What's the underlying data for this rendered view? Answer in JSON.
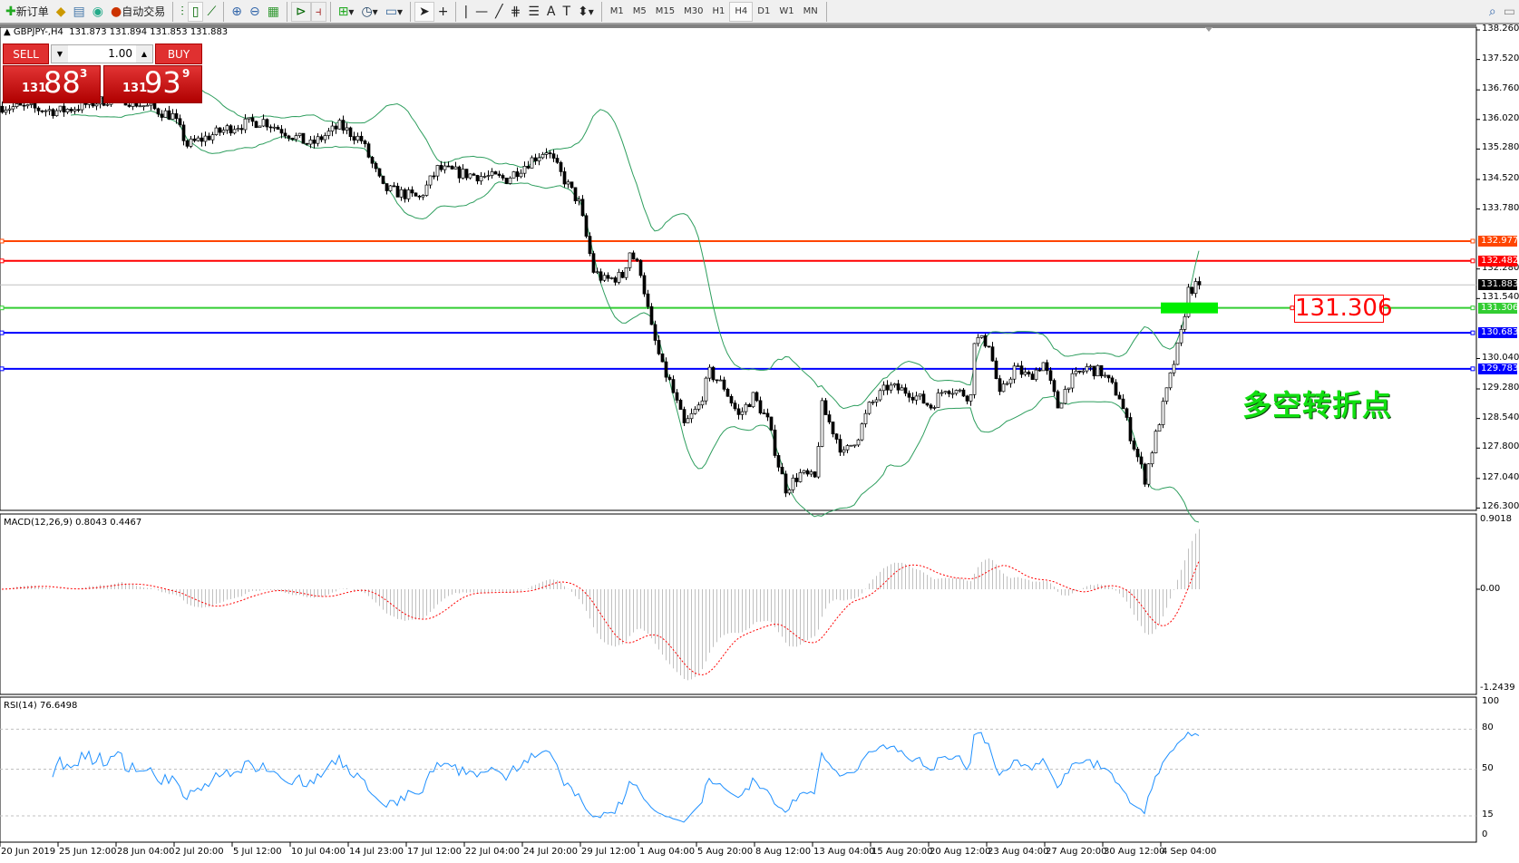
{
  "toolbar": {
    "new_order": "新订单",
    "auto_trading": "自动交易",
    "timeframes": [
      "M1",
      "M5",
      "M15",
      "M30",
      "H1",
      "H4",
      "D1",
      "W1",
      "MN"
    ],
    "active_timeframe": "H4"
  },
  "chart": {
    "symbol_info": "GBPJPY-,H4  131.873 131.894 131.853 131.883",
    "trade": {
      "sell": "SELL",
      "buy": "BUY",
      "lot": "1.00",
      "bid": {
        "prefix": "131",
        "main": "88",
        "sup": "3"
      },
      "ask": {
        "prefix": "131",
        "main": "93",
        "sup": "9"
      }
    },
    "price_ticks": [
      "138.260",
      "137.520",
      "136.760",
      "136.020",
      "135.280",
      "134.520",
      "133.780",
      "132.280",
      "131.540",
      "130.040",
      "129.280",
      "128.540",
      "127.800",
      "127.040",
      "126.300"
    ],
    "levels": [
      {
        "price": "132.977",
        "color": "#ff4500"
      },
      {
        "price": "132.482",
        "color": "#ff0000"
      },
      {
        "price": "131.306",
        "color": "#32cd32"
      },
      {
        "price": "130.683",
        "color": "#0000ff"
      },
      {
        "price": "129.783",
        "color": "#0000ff"
      }
    ],
    "current_price": "131.883",
    "annotation": {
      "price": "131.306",
      "text": "多空转折点",
      "text_color": "#11e011"
    },
    "macd": {
      "label": "MACD(12,26,9) 0.8043 0.4467",
      "ticks": [
        "0.9018",
        "0.00",
        "-1.2439"
      ]
    },
    "rsi": {
      "label": "RSI(14) 76.6498",
      "ticks": [
        "100",
        "80",
        "50",
        "15",
        "0"
      ]
    },
    "time_labels": [
      "20 Jun 2019",
      "25 Jun 12:00",
      "28 Jun 04:00",
      "2 Jul 20:00",
      "5 Jul 12:00",
      "10 Jul 04:00",
      "14 Jul 23:00",
      "17 Jul 12:00",
      "22 Jul 04:00",
      "24 Jul 20:00",
      "29 Jul 12:00",
      "1 Aug 04:00",
      "5 Aug 20:00",
      "8 Aug 12:00",
      "13 Aug 04:00",
      "15 Aug 20:00",
      "20 Aug 12:00",
      "23 Aug 04:00",
      "27 Aug 20:00",
      "30 Aug 12:00",
      "4 Sep 04:00"
    ]
  },
  "chart_data": {
    "type": "candlestick",
    "symbol": "GBPJPY",
    "timeframe": "H4",
    "ylim": [
      126.3,
      138.26
    ],
    "indicators": [
      "Bollinger Bands",
      "MACD(12,26,9)",
      "RSI(14)"
    ],
    "approx_close_path": [
      [
        0,
        136.35
      ],
      [
        16,
        136.23
      ],
      [
        32,
        136.59
      ],
      [
        47,
        136.11
      ],
      [
        51,
        135.38
      ],
      [
        64,
        135.86
      ],
      [
        72,
        135.99
      ],
      [
        80,
        135.62
      ],
      [
        85,
        135.38
      ],
      [
        93,
        135.86
      ],
      [
        99,
        135.5
      ],
      [
        105,
        134.29
      ],
      [
        115,
        134.05
      ],
      [
        120,
        134.78
      ],
      [
        128,
        134.65
      ],
      [
        139,
        134.53
      ],
      [
        146,
        135.02
      ],
      [
        150,
        135.26
      ],
      [
        154,
        134.65
      ],
      [
        159,
        133.93
      ],
      [
        163,
        132.23
      ],
      [
        166,
        131.99
      ],
      [
        171,
        132.11
      ],
      [
        173,
        132.72
      ],
      [
        176,
        132.23
      ],
      [
        179,
        130.78
      ],
      [
        182,
        129.81
      ],
      [
        184,
        129.45
      ],
      [
        188,
        128.36
      ],
      [
        192,
        128.84
      ],
      [
        195,
        129.69
      ],
      [
        199,
        129.33
      ],
      [
        203,
        128.6
      ],
      [
        207,
        129.09
      ],
      [
        211,
        128.48
      ],
      [
        214,
        127.39
      ],
      [
        216,
        126.79
      ],
      [
        220,
        127.15
      ],
      [
        224,
        127.03
      ],
      [
        226,
        128.84
      ],
      [
        232,
        127.64
      ],
      [
        236,
        128.12
      ],
      [
        239,
        128.84
      ],
      [
        244,
        129.33
      ],
      [
        250,
        129.21
      ],
      [
        256,
        128.84
      ],
      [
        260,
        129.33
      ],
      [
        267,
        129.09
      ],
      [
        268,
        130.54
      ],
      [
        272,
        130.42
      ],
      [
        275,
        129.09
      ],
      [
        279,
        129.81
      ],
      [
        283,
        129.57
      ],
      [
        287,
        129.93
      ],
      [
        291,
        128.84
      ],
      [
        294,
        129.45
      ],
      [
        299,
        129.81
      ],
      [
        303,
        129.69
      ],
      [
        308,
        129.09
      ],
      [
        311,
        128.12
      ],
      [
        315,
        127.03
      ],
      [
        318,
        128.12
      ],
      [
        322,
        129.57
      ],
      [
        325,
        130.66
      ],
      [
        327,
        131.75
      ],
      [
        330,
        131.88
      ]
    ]
  }
}
